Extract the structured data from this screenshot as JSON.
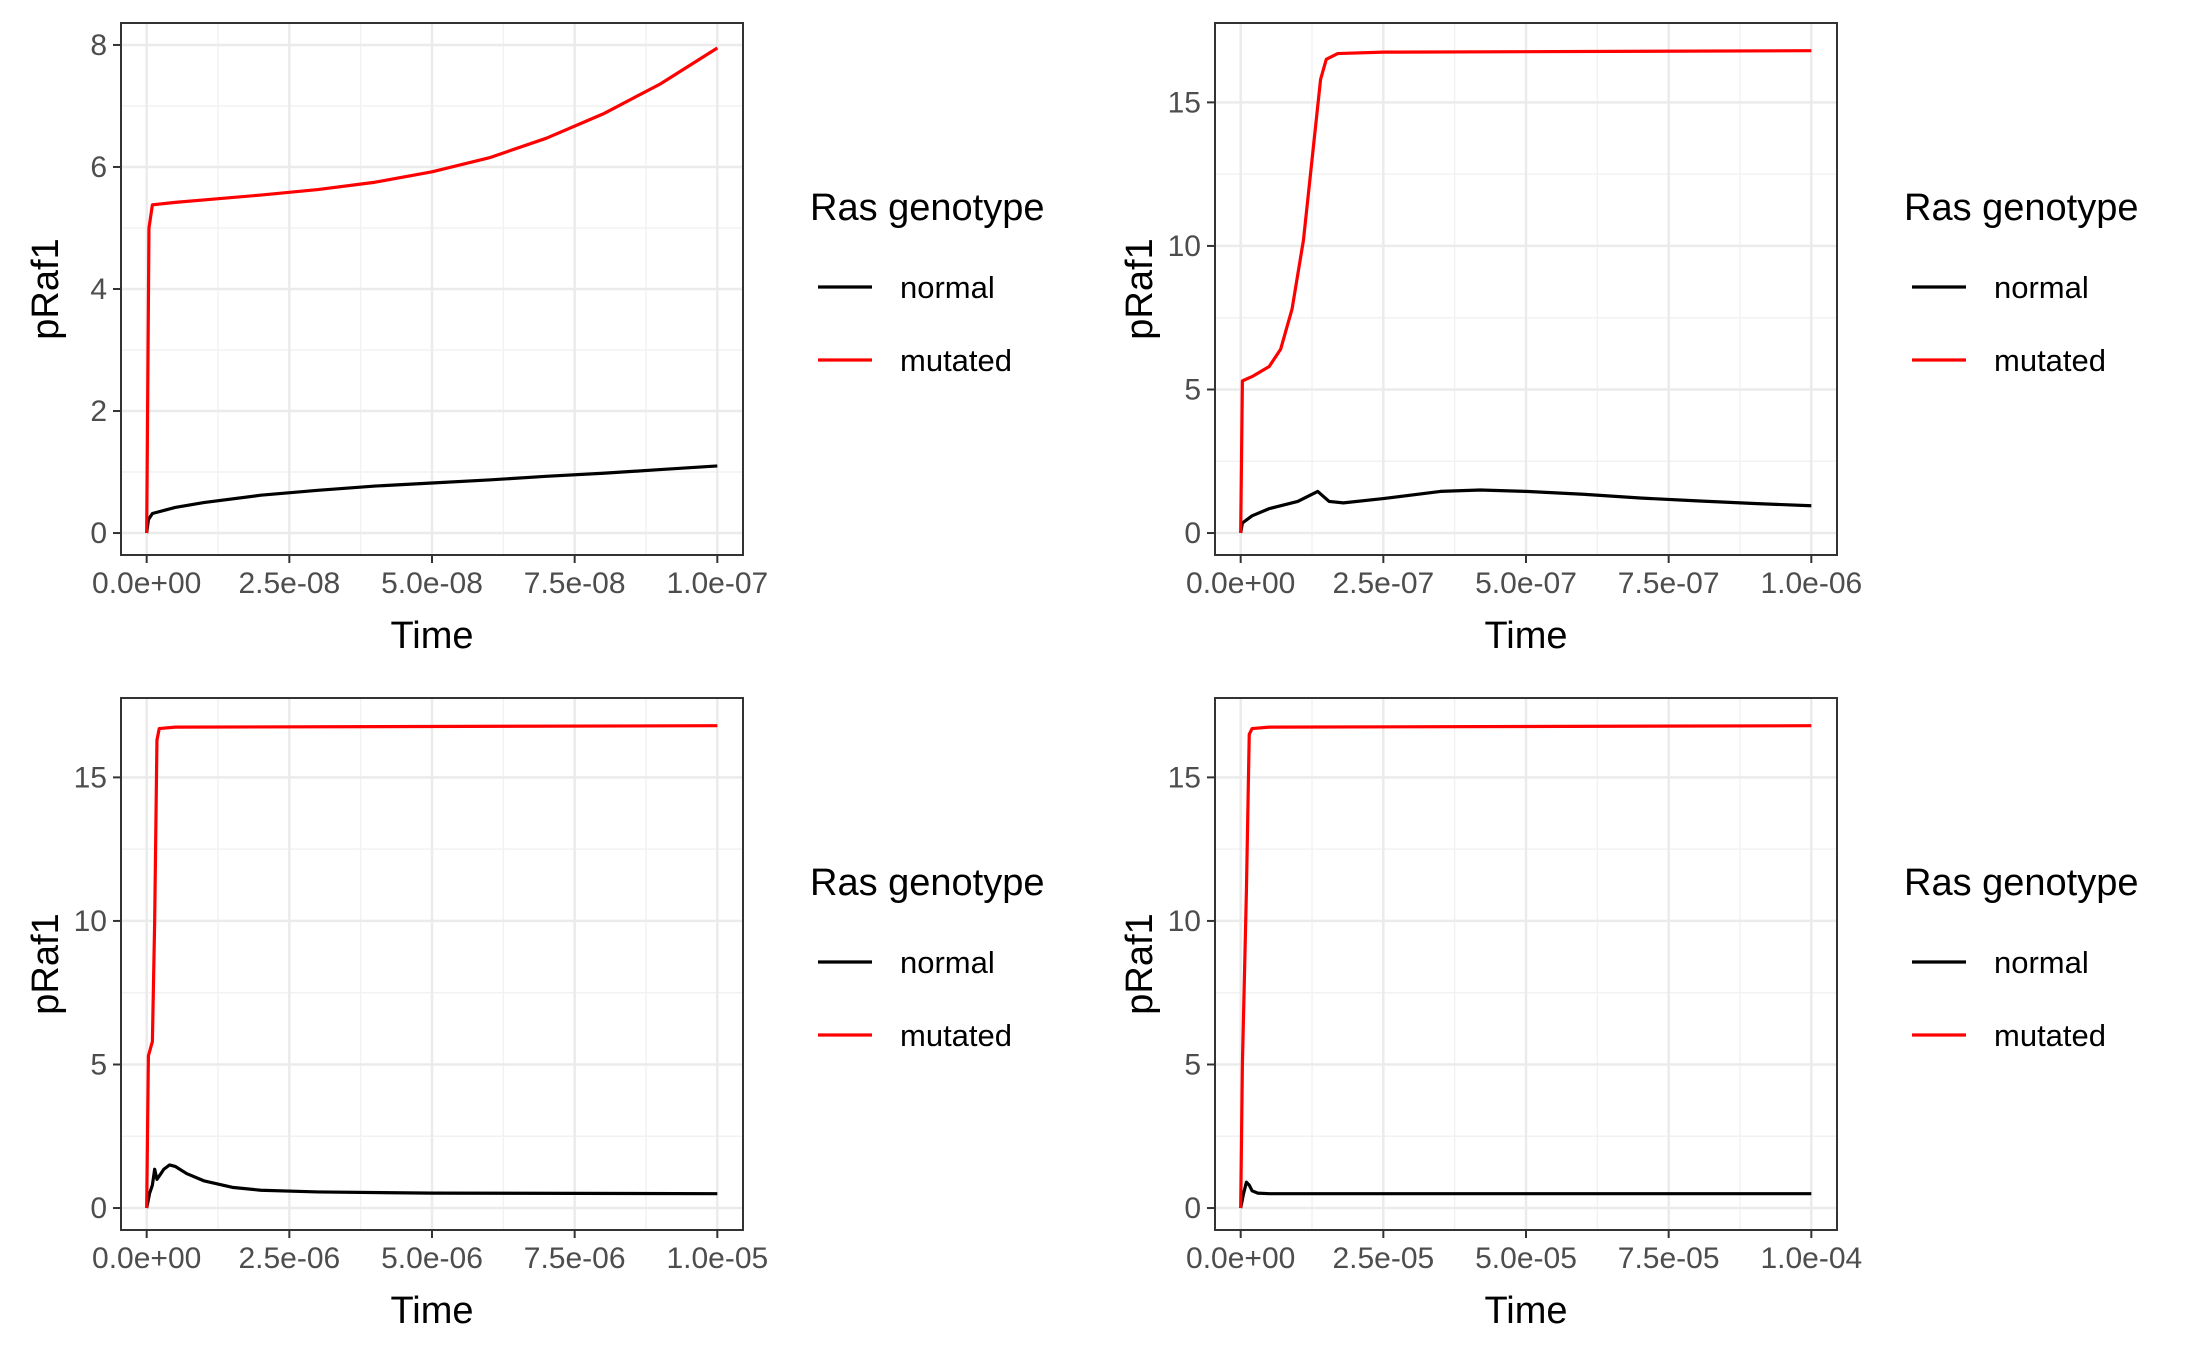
{
  "chart_data": [
    {
      "type": "line",
      "xlabel": "Time",
      "ylabel": "pRaf1",
      "xlim": [
        0,
        1e-07
      ],
      "ylim": [
        0,
        8
      ],
      "x_ticks": [
        0,
        2.5e-08,
        5e-08,
        7.5e-08,
        1e-07
      ],
      "x_tick_labels": [
        "0.0e+00",
        "2.5e-08",
        "5.0e-08",
        "7.5e-08",
        "1.0e-07"
      ],
      "y_ticks": [
        0,
        2,
        4,
        6,
        8
      ],
      "y_tick_labels": [
        "0",
        "2",
        "4",
        "6",
        "8"
      ],
      "legend": {
        "title": "Ras genotype",
        "position": "right"
      },
      "series": [
        {
          "name": "normal",
          "color": "#000000",
          "points": [
            [
              0,
              0
            ],
            [
              3e-10,
              0.22
            ],
            [
              1e-09,
              0.32
            ],
            [
              5e-09,
              0.42
            ],
            [
              1e-08,
              0.5
            ],
            [
              2e-08,
              0.62
            ],
            [
              3e-08,
              0.7
            ],
            [
              4e-08,
              0.77
            ],
            [
              5e-08,
              0.82
            ],
            [
              6e-08,
              0.87
            ],
            [
              7e-08,
              0.93
            ],
            [
              8e-08,
              0.98
            ],
            [
              9e-08,
              1.04
            ],
            [
              1e-07,
              1.1
            ]
          ]
        },
        {
          "name": "mutated",
          "color": "#ff0000",
          "points": [
            [
              0,
              0
            ],
            [
              4e-10,
              5.0
            ],
            [
              1e-09,
              5.38
            ],
            [
              5e-09,
              5.42
            ],
            [
              1e-08,
              5.46
            ],
            [
              2e-08,
              5.54
            ],
            [
              3e-08,
              5.63
            ],
            [
              4e-08,
              5.75
            ],
            [
              5e-08,
              5.92
            ],
            [
              6e-08,
              6.15
            ],
            [
              7e-08,
              6.47
            ],
            [
              8e-08,
              6.87
            ],
            [
              9e-08,
              7.36
            ],
            [
              1e-07,
              7.95
            ]
          ]
        }
      ]
    },
    {
      "type": "line",
      "xlabel": "Time",
      "ylabel": "pRaf1",
      "xlim": [
        0,
        1e-06
      ],
      "ylim": [
        0,
        17
      ],
      "x_ticks": [
        0,
        2.5e-07,
        5e-07,
        7.5e-07,
        1e-06
      ],
      "x_tick_labels": [
        "0.0e+00",
        "2.5e-07",
        "5.0e-07",
        "7.5e-07",
        "1.0e-06"
      ],
      "y_ticks": [
        0,
        5,
        10,
        15
      ],
      "y_tick_labels": [
        "0",
        "5",
        "10",
        "15"
      ],
      "legend": {
        "title": "Ras genotype",
        "position": "right"
      },
      "series": [
        {
          "name": "normal",
          "color": "#000000",
          "points": [
            [
              0,
              0
            ],
            [
              3e-09,
              0.35
            ],
            [
              2e-08,
              0.6
            ],
            [
              5e-08,
              0.85
            ],
            [
              1e-07,
              1.1
            ],
            [
              1.35e-07,
              1.45
            ],
            [
              1.55e-07,
              1.1
            ],
            [
              1.8e-07,
              1.05
            ],
            [
              2.5e-07,
              1.2
            ],
            [
              3.5e-07,
              1.45
            ],
            [
              4.2e-07,
              1.5
            ],
            [
              5e-07,
              1.45
            ],
            [
              6e-07,
              1.35
            ],
            [
              7e-07,
              1.22
            ],
            [
              8e-07,
              1.12
            ],
            [
              9e-07,
              1.03
            ],
            [
              1e-06,
              0.95
            ]
          ]
        },
        {
          "name": "mutated",
          "color": "#ff0000",
          "points": [
            [
              0,
              0
            ],
            [
              3e-09,
              5.3
            ],
            [
              2e-08,
              5.45
            ],
            [
              5e-08,
              5.8
            ],
            [
              7e-08,
              6.4
            ],
            [
              9e-08,
              7.8
            ],
            [
              1.1e-07,
              10.2
            ],
            [
              1.25e-07,
              13.0
            ],
            [
              1.4e-07,
              15.8
            ],
            [
              1.5e-07,
              16.5
            ],
            [
              1.7e-07,
              16.7
            ],
            [
              2.5e-07,
              16.75
            ],
            [
              1e-06,
              16.8
            ]
          ]
        }
      ]
    },
    {
      "type": "line",
      "xlabel": "Time",
      "ylabel": "pRaf1",
      "xlim": [
        0,
        1e-05
      ],
      "ylim": [
        0,
        17
      ],
      "x_ticks": [
        0,
        2.5e-06,
        5e-06,
        7.5e-06,
        1e-05
      ],
      "x_tick_labels": [
        "0.0e+00",
        "2.5e-06",
        "5.0e-06",
        "7.5e-06",
        "1.0e-05"
      ],
      "y_ticks": [
        0,
        5,
        10,
        15
      ],
      "y_tick_labels": [
        "0",
        "5",
        "10",
        "15"
      ],
      "legend": {
        "title": "Ras genotype",
        "position": "right"
      },
      "series": [
        {
          "name": "normal",
          "color": "#000000",
          "points": [
            [
              0,
              0
            ],
            [
              5e-08,
              0.5
            ],
            [
              1e-07,
              0.8
            ],
            [
              1.4e-07,
              1.35
            ],
            [
              1.8e-07,
              1.0
            ],
            [
              2.5e-07,
              1.2
            ],
            [
              3e-07,
              1.35
            ],
            [
              4e-07,
              1.5
            ],
            [
              5e-07,
              1.45
            ],
            [
              7e-07,
              1.2
            ],
            [
              1e-06,
              0.95
            ],
            [
              1.5e-06,
              0.72
            ],
            [
              2e-06,
              0.62
            ],
            [
              3e-06,
              0.56
            ],
            [
              5e-06,
              0.52
            ],
            [
              7.5e-06,
              0.51
            ],
            [
              1e-05,
              0.5
            ]
          ]
        },
        {
          "name": "mutated",
          "color": "#ff0000",
          "points": [
            [
              0,
              0
            ],
            [
              3e-08,
              5.3
            ],
            [
              1e-07,
              5.8
            ],
            [
              1.4e-07,
              10.0
            ],
            [
              1.8e-07,
              16.3
            ],
            [
              2.2e-07,
              16.7
            ],
            [
              5e-07,
              16.75
            ],
            [
              1e-05,
              16.8
            ]
          ]
        }
      ]
    },
    {
      "type": "line",
      "xlabel": "Time",
      "ylabel": "pRaf1",
      "xlim": [
        0,
        0.0001
      ],
      "ylim": [
        0,
        17
      ],
      "x_ticks": [
        0,
        2.5e-05,
        5e-05,
        7.5e-05,
        0.0001
      ],
      "x_tick_labels": [
        "0.0e+00",
        "2.5e-05",
        "5.0e-05",
        "7.5e-05",
        "1.0e-04"
      ],
      "y_ticks": [
        0,
        5,
        10,
        15
      ],
      "y_tick_labels": [
        "0",
        "5",
        "10",
        "15"
      ],
      "legend": {
        "title": "Ras genotype",
        "position": "right"
      },
      "series": [
        {
          "name": "normal",
          "color": "#000000",
          "points": [
            [
              0,
              0
            ],
            [
              5e-07,
              0.5
            ],
            [
              1e-06,
              0.9
            ],
            [
              1.5e-06,
              0.8
            ],
            [
              2e-06,
              0.6
            ],
            [
              3e-06,
              0.52
            ],
            [
              5e-06,
              0.5
            ],
            [
              0.0001,
              0.5
            ]
          ]
        },
        {
          "name": "mutated",
          "color": "#ff0000",
          "points": [
            [
              0,
              0
            ],
            [
              3e-07,
              5.0
            ],
            [
              1e-06,
              11.0
            ],
            [
              1.5e-06,
              16.5
            ],
            [
              2e-06,
              16.7
            ],
            [
              5e-06,
              16.75
            ],
            [
              0.0001,
              16.8
            ]
          ]
        }
      ]
    }
  ]
}
